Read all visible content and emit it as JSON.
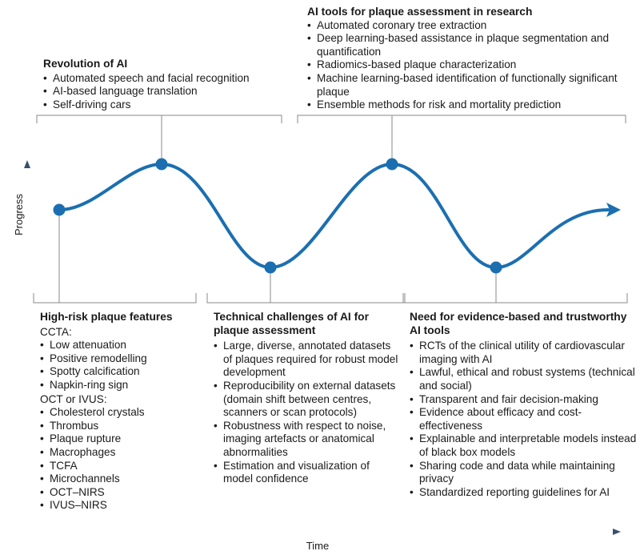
{
  "axes": {
    "y_label": "Progress",
    "x_label": "Time",
    "axis_color": "#37506e"
  },
  "curve_color": "#1b6fb0",
  "ai_tools_research": {
    "title": "AI tools for plaque assessment in research",
    "items": [
      "Automated coronary tree extraction",
      "Deep learning-based assistance in plaque segmentation and quantification",
      "Radiomics-based plaque characterization",
      "Machine learning-based identification of functionally significant plaque",
      "Ensemble methods for risk and mortality prediction"
    ]
  },
  "revolution_ai": {
    "title": "Revolution of AI",
    "items": [
      "Automated speech and facial recognition",
      "AI-based language translation",
      "Self-driving cars"
    ]
  },
  "high_risk_plaque": {
    "title": "High-risk plaque features",
    "ccta_label": "CCTA:",
    "ccta_items": [
      "Low attenuation",
      "Positive remodelling",
      "Spotty calcification",
      "Napkin-ring sign"
    ],
    "oct_label": "OCT or IVUS:",
    "oct_items": [
      "Cholesterol crystals",
      "Thrombus",
      "Plaque rupture",
      "Macrophages",
      "TCFA",
      "Microchannels",
      "OCT–NIRS",
      "IVUS–NIRS"
    ]
  },
  "technical_challenges": {
    "title": "Technical challenges of AI for plaque assessment",
    "items": [
      "Large, diverse, annotated datasets of plaques required for robust model development",
      "Reproducibility on external datasets (domain shift between centres, scanners or scan protocols)",
      "Robustness with respect to noise, imaging artefacts or anatomical abnormalities",
      "Estimation and visualization of model confidence"
    ]
  },
  "evidence_based": {
    "title": "Need for evidence-based and trustworthy AI tools",
    "items": [
      "RCTs of the clinical utility of cardiovascular imaging with AI",
      "Lawful, ethical and robust systems (technical and social)",
      "Transparent and fair decision-making",
      "Evidence about efficacy and cost-effectiveness",
      "Explainable and interpretable models instead of black box models",
      "Sharing code and data while maintaining privacy",
      "Standardized reporting guidelines for AI"
    ]
  }
}
